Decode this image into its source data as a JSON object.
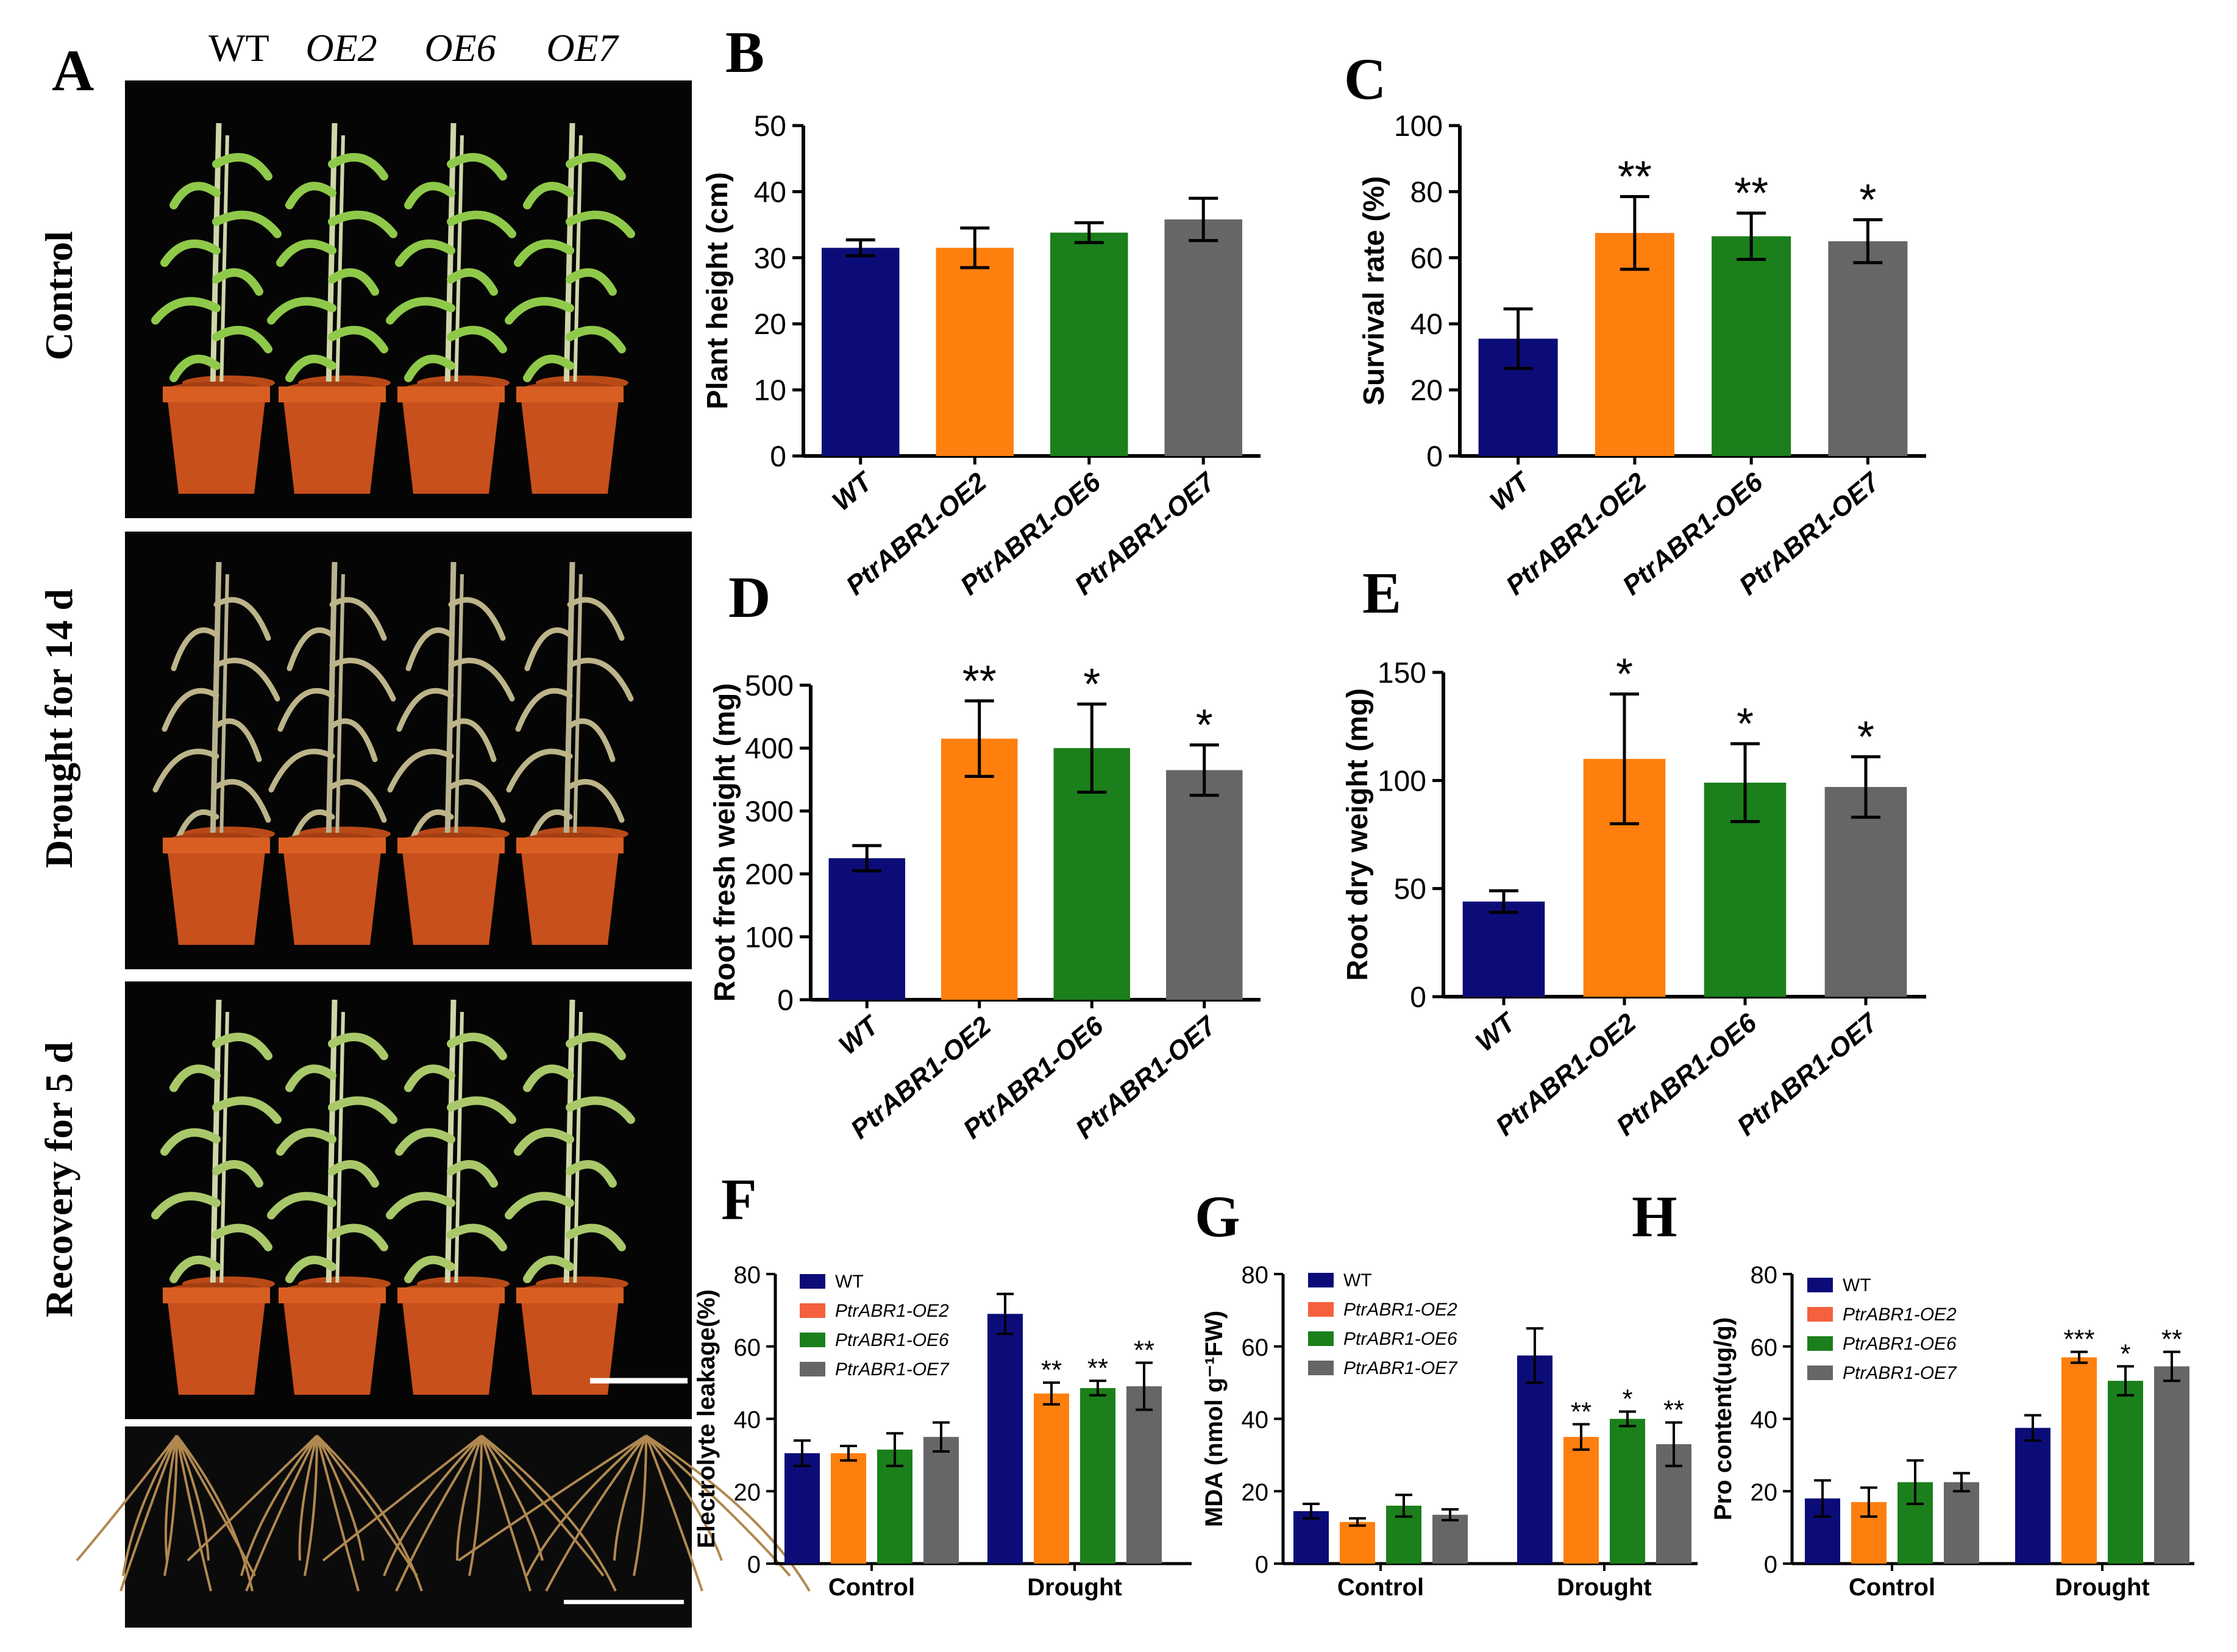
{
  "colors": {
    "WT": "#0c0c78",
    "OE2": "#ff7f0e",
    "OE6": "#1b7f1b",
    "OE7": "#666666",
    "legend_OE2": "#f4613c",
    "photo_bg": "#050505",
    "pot": "#c8501c",
    "leaf": "#8fc94a",
    "root": "#b08850"
  },
  "panel_a": {
    "letter": "A",
    "genotypes": [
      "WT",
      "OE2",
      "OE6",
      "OE7"
    ],
    "rows": [
      "Control",
      "Drought for 14 d",
      "Recovery for 5 d"
    ]
  },
  "charts": [
    {
      "id": "B",
      "letter": "B",
      "type": "bar",
      "categories": [
        "WT",
        "PtrABR1-OE2",
        "PtrABR1-OE6",
        "PtrABR1-OE7"
      ],
      "values": [
        31.5,
        31.5,
        33.8,
        35.8
      ],
      "errors": [
        1.2,
        3.0,
        1.5,
        3.2
      ],
      "significance": [
        "",
        "",
        "",
        ""
      ],
      "ylabel": "Plant height (cm)",
      "ylim": [
        0,
        50
      ],
      "yticks": [
        0,
        10,
        20,
        30,
        40,
        50
      ]
    },
    {
      "id": "C",
      "letter": "C",
      "type": "bar",
      "categories": [
        "WT",
        "PtrABR1-OE2",
        "PtrABR1-OE6",
        "PtrABR1-OE7"
      ],
      "values": [
        35.5,
        67.5,
        66.5,
        65.0
      ],
      "errors": [
        9.0,
        11.0,
        7.0,
        6.5
      ],
      "significance": [
        "",
        "**",
        "**",
        "*"
      ],
      "ylabel": "Survival rate (%)",
      "ylim": [
        0,
        100
      ],
      "yticks": [
        0,
        20,
        40,
        60,
        80,
        100
      ]
    },
    {
      "id": "D",
      "letter": "D",
      "type": "bar",
      "categories": [
        "WT",
        "PtrABR1-OE2",
        "PtrABR1-OE6",
        "PtrABR1-OE7"
      ],
      "values": [
        225,
        415,
        400,
        365
      ],
      "errors": [
        20,
        60,
        70,
        40
      ],
      "significance": [
        "",
        "**",
        "*",
        "*"
      ],
      "ylabel": "Root fresh weight (mg)",
      "ylim": [
        0,
        500
      ],
      "yticks": [
        0,
        100,
        200,
        300,
        400,
        500
      ]
    },
    {
      "id": "E",
      "letter": "E",
      "type": "bar",
      "categories": [
        "WT",
        "PtrABR1-OE2",
        "PtrABR1-OE6",
        "PtrABR1-OE7"
      ],
      "values": [
        44,
        110,
        99,
        97
      ],
      "errors": [
        5,
        30,
        18,
        14
      ],
      "significance": [
        "",
        "*",
        "*",
        "*"
      ],
      "ylabel": "Root dry weight (mg)",
      "ylim": [
        0,
        150
      ],
      "yticks": [
        0,
        50,
        100,
        150
      ]
    },
    {
      "id": "F",
      "letter": "F",
      "type": "grouped_bar",
      "groups": [
        "Control",
        "Drought"
      ],
      "series": [
        {
          "name": "WT",
          "values": [
            30.5,
            69.0
          ],
          "errors": [
            3.5,
            5.5
          ],
          "significance": [
            "",
            ""
          ]
        },
        {
          "name": "PtrABR1-OE2",
          "values": [
            30.5,
            47.0
          ],
          "errors": [
            2.0,
            3.0
          ],
          "significance": [
            "",
            "**"
          ]
        },
        {
          "name": "PtrABR1-OE6",
          "values": [
            31.5,
            48.5
          ],
          "errors": [
            4.5,
            2.0
          ],
          "significance": [
            "",
            "**"
          ]
        },
        {
          "name": "PtrABR1-OE7",
          "values": [
            35.0,
            49.0
          ],
          "errors": [
            4.0,
            6.5
          ],
          "significance": [
            "",
            "**"
          ]
        }
      ],
      "ylabel": "Electrolyte leakage(%)",
      "ylim": [
        0,
        80
      ],
      "yticks": [
        0,
        20,
        40,
        60,
        80
      ]
    },
    {
      "id": "G",
      "letter": "G",
      "type": "grouped_bar",
      "groups": [
        "Control",
        "Drought"
      ],
      "series": [
        {
          "name": "WT",
          "values": [
            14.5,
            57.5
          ],
          "errors": [
            2.0,
            7.5
          ],
          "significance": [
            "",
            ""
          ]
        },
        {
          "name": "PtrABR1-OE2",
          "values": [
            11.5,
            35.0
          ],
          "errors": [
            1.0,
            3.5
          ],
          "significance": [
            "",
            "**"
          ]
        },
        {
          "name": "PtrABR1-OE6",
          "values": [
            16.0,
            40.0
          ],
          "errors": [
            3.0,
            2.0
          ],
          "significance": [
            "",
            "*"
          ]
        },
        {
          "name": "PtrABR1-OE7",
          "values": [
            13.5,
            33.0
          ],
          "errors": [
            1.5,
            6.0
          ],
          "significance": [
            "",
            "**"
          ]
        }
      ],
      "ylabel": "MDA (nmol g⁻¹FW)",
      "ylim": [
        0,
        80
      ],
      "yticks": [
        0,
        20,
        40,
        60,
        80
      ]
    },
    {
      "id": "H",
      "letter": "H",
      "type": "grouped_bar",
      "groups": [
        "Control",
        "Drought"
      ],
      "series": [
        {
          "name": "WT",
          "values": [
            18.0,
            37.5
          ],
          "errors": [
            5.0,
            3.5
          ],
          "significance": [
            "",
            ""
          ]
        },
        {
          "name": "PtrABR1-OE2",
          "values": [
            17.0,
            57.0
          ],
          "errors": [
            4.0,
            1.5
          ],
          "significance": [
            "",
            "***"
          ]
        },
        {
          "name": "PtrABR1-OE6",
          "values": [
            22.5,
            50.5
          ],
          "errors": [
            6.0,
            4.0
          ],
          "significance": [
            "",
            "*"
          ]
        },
        {
          "name": "PtrABR1-OE7",
          "values": [
            22.5,
            54.5
          ],
          "errors": [
            2.5,
            4.0
          ],
          "significance": [
            "",
            "**"
          ]
        }
      ],
      "ylabel": "Pro content(ug/g)",
      "ylim": [
        0,
        80
      ],
      "yticks": [
        0,
        20,
        40,
        60,
        80
      ]
    }
  ]
}
